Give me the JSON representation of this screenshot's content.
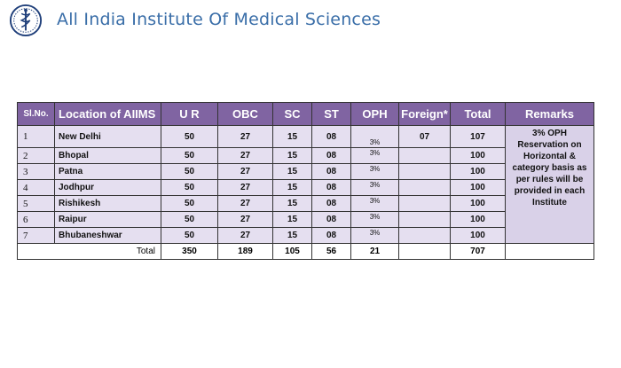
{
  "header": {
    "title": "All India Institute Of Medical Sciences",
    "logo_icon": "aiims-emblem-icon"
  },
  "table": {
    "columns": [
      "Sl.No.",
      "Location of AIIMS",
      "U R",
      "OBC",
      "SC",
      "ST",
      "OPH",
      "Foreign*",
      "Total",
      "Remarks"
    ],
    "rows": [
      {
        "sl": "1",
        "location": "New Delhi",
        "ur": "50",
        "obc": "27",
        "sc": "15",
        "st": "08",
        "oph": "3%",
        "foreign": "07",
        "total": "107"
      },
      {
        "sl": "2",
        "location": "Bhopal",
        "ur": "50",
        "obc": "27",
        "sc": "15",
        "st": "08",
        "oph": "3%",
        "foreign": "",
        "total": "100"
      },
      {
        "sl": "3",
        "location": "Patna",
        "ur": "50",
        "obc": "27",
        "sc": "15",
        "st": "08",
        "oph": "3%",
        "foreign": "",
        "total": "100"
      },
      {
        "sl": "4",
        "location": "Jodhpur",
        "ur": "50",
        "obc": "27",
        "sc": "15",
        "st": "08",
        "oph": "3%",
        "foreign": "",
        "total": "100"
      },
      {
        "sl": "5",
        "location": "Rishikesh",
        "ur": "50",
        "obc": "27",
        "sc": "15",
        "st": "08",
        "oph": "3%",
        "foreign": "",
        "total": "100"
      },
      {
        "sl": "6",
        "location": "Raipur",
        "ur": "50",
        "obc": "27",
        "sc": "15",
        "st": "08",
        "oph": "3%",
        "foreign": "",
        "total": "100"
      },
      {
        "sl": "7",
        "location": "Bhubaneshwar",
        "ur": "50",
        "obc": "27",
        "sc": "15",
        "st": "08",
        "oph": "3%",
        "foreign": "",
        "total": "100"
      }
    ],
    "totals": {
      "label": "Total",
      "ur": "350",
      "obc": "189",
      "sc": "105",
      "st": "56",
      "oph": "21",
      "foreign": "",
      "total": "707"
    },
    "remarks": "3% OPH Reservation on Horizontal & category basis as per rules will be provided in each Institute"
  },
  "colors": {
    "header_bg": "#8064a2",
    "row_bg": "#e5dff0",
    "title_color": "#3a6ea8"
  }
}
